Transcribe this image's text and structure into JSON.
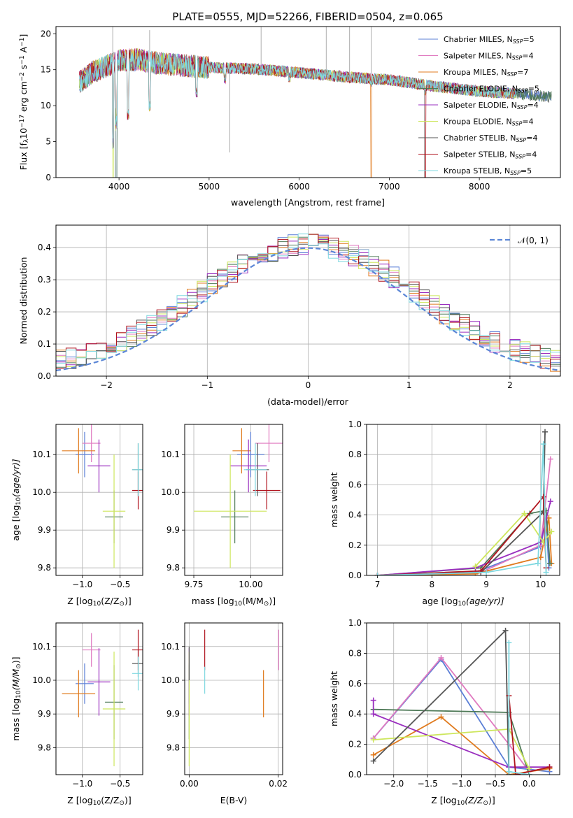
{
  "page": {
    "title": "PLATE=0555, MJD=52266, FIBERID=0504, z=0.065"
  },
  "series": [
    {
      "key": "chab_miles",
      "name": "Chabrier MILES, N",
      "n": "=5",
      "color": "#5b7fd6"
    },
    {
      "key": "salp_miles",
      "name": "Salpeter MILES, N",
      "n": "=4",
      "color": "#e07ac0"
    },
    {
      "key": "krou_miles",
      "name": "Kroupa MILES, N",
      "n": "=7",
      "color": "#e07b1f"
    },
    {
      "key": "chab_elodie",
      "name": "Chabrier ELODIE, N",
      "n": "=5",
      "color": "#4f7a58"
    },
    {
      "key": "salp_elodie",
      "name": "Salpeter ELODIE, N",
      "n": "=4",
      "color": "#9a2fbf"
    },
    {
      "key": "krou_elodie",
      "name": "Kroupa ELODIE, N",
      "n": "=4",
      "color": "#cde65c"
    },
    {
      "key": "chab_stelib",
      "name": "Chabrier STELIB, N",
      "n": "=4",
      "color": "#555555"
    },
    {
      "key": "salp_stelib",
      "name": "Salpeter STELIB, N",
      "n": "=4",
      "color": "#b0141e"
    },
    {
      "key": "krou_stelib",
      "name": "Kroupa STELIB, N",
      "n": "=5",
      "color": "#7fd8e0"
    }
  ],
  "legend_sub": "SSP",
  "normal_legend": "𝒩(0, 1)",
  "chart_data": [
    {
      "id": "spectrum",
      "type": "line",
      "xlabel": "wavelength [Angstrom, rest frame]",
      "ylabel": "Flux [f",
      "ylabel_sub": "λ",
      "ylabel_rest": "10",
      "ylabel_sup1": "−17",
      "ylabel_rest2": " erg cm",
      "ylabel_sup2": "−2",
      "ylabel_rest3": " s",
      "ylabel_sup3": "−1",
      "ylabel_rest4": " A",
      "ylabel_sup4": "−1",
      "ylabel_end": "]",
      "xlim": [
        3300,
        8900
      ],
      "ylim": [
        0,
        21
      ],
      "xticks": [
        4000,
        5000,
        6000,
        7000,
        8000
      ],
      "yticks": [
        0,
        5,
        10,
        15,
        20
      ],
      "grid": false,
      "legend": "top-right",
      "continuum": [
        [
          3560,
          13.2
        ],
        [
          3700,
          14.6
        ],
        [
          3850,
          15.4
        ],
        [
          4000,
          16.3
        ],
        [
          4200,
          16.4
        ],
        [
          4500,
          15.8
        ],
        [
          4800,
          15.5
        ],
        [
          5000,
          15.3
        ],
        [
          5500,
          15.1
        ],
        [
          6000,
          14.6
        ],
        [
          6500,
          14.0
        ],
        [
          7000,
          13.6
        ],
        [
          7500,
          12.7
        ],
        [
          8000,
          12.0
        ],
        [
          8500,
          11.6
        ],
        [
          8800,
          11.2
        ]
      ],
      "absorptions": [
        [
          3934,
          4.0
        ],
        [
          3969,
          -1
        ],
        [
          4101,
          8.0
        ],
        [
          4340,
          9.2
        ],
        [
          4861,
          11.0
        ],
        [
          5175,
          13.0
        ],
        [
          5893,
          13.2
        ],
        [
          6563,
          13.1
        ],
        [
          6800,
          12.5
        ],
        [
          7400,
          11.5
        ]
      ],
      "spikes": [
        [
          3930,
          21
        ],
        [
          4340,
          20.5
        ],
        [
          5230,
          3.5
        ],
        [
          5577,
          21
        ],
        [
          6300,
          21
        ],
        [
          6560,
          21
        ],
        [
          6800,
          21
        ],
        [
          7390,
          0
        ]
      ]
    },
    {
      "id": "residuals",
      "type": "histogram",
      "xlabel": "(data-model)/error",
      "ylabel": "Normed distribution",
      "xlim": [
        -2.5,
        2.5
      ],
      "ylim": [
        0,
        0.47
      ],
      "xticks": [
        -2,
        -1,
        0,
        1,
        2
      ],
      "yticks": [
        0.0,
        0.1,
        0.2,
        0.3,
        0.4
      ],
      "bin_width": 0.1,
      "grid": true,
      "legend": "top-right"
    },
    {
      "id": "age_vs_z",
      "type": "scatter",
      "xlabel": "Z [log",
      "xlabel_sub": "10",
      "xlabel_rest": "(Z/Z",
      "xlabel_sub2": "⊙",
      "xlabel_end": ")]",
      "ylabel": "age  [log",
      "ylabel_sub": "10",
      "ylabel_rest": "(age/yr)]",
      "xlim": [
        -1.35,
        -0.2
      ],
      "ylim": [
        9.78,
        10.18
      ],
      "xticks": [
        -1.0,
        -0.5
      ],
      "yticks": [
        9.8,
        9.9,
        10.0,
        10.1
      ],
      "points": [
        {
          "s": 0,
          "x": -0.97,
          "y": 10.1,
          "xe": 0.12,
          "ye": 0.06
        },
        {
          "s": 1,
          "x": -0.88,
          "y": 10.13,
          "xe": 0.12,
          "ye": 0.05
        },
        {
          "s": 2,
          "x": -1.05,
          "y": 10.11,
          "xe": 0.22,
          "ye": 0.06
        },
        {
          "s": 3,
          "x": -0.58,
          "y": 9.935,
          "xe": 0.12,
          "ye": 0.07
        },
        {
          "s": 4,
          "x": -0.78,
          "y": 10.07,
          "xe": 0.15,
          "ye": 0.07
        },
        {
          "s": 5,
          "x": -0.58,
          "y": 9.95,
          "xe": 0.15,
          "ye": 0.15
        },
        {
          "s": 6,
          "x": -0.26,
          "y": 10.06,
          "xe": 0.08,
          "ye": 0.07
        },
        {
          "s": 7,
          "x": -0.26,
          "y": 10.005,
          "xe": 0.08,
          "ye": 0.05
        },
        {
          "s": 8,
          "x": -0.26,
          "y": 10.06,
          "xe": 0.08,
          "ye": 0.07
        }
      ]
    },
    {
      "id": "age_vs_mass",
      "type": "scatter",
      "xlabel": "mass [log",
      "xlabel_sub": "10",
      "xlabel_rest": "(M/M",
      "xlabel_sub2": "⊙",
      "xlabel_end": ")]",
      "xlim": [
        9.71,
        10.14
      ],
      "ylim": [
        9.78,
        10.18
      ],
      "xticks": [
        9.75,
        10.0
      ],
      "yticks": [
        9.8,
        9.9,
        10.0,
        10.1
      ],
      "points": [
        {
          "s": 0,
          "x": 10.0,
          "y": 10.1,
          "xe": 0.06,
          "ye": 0.06
        },
        {
          "s": 1,
          "x": 10.08,
          "y": 10.13,
          "xe": 0.06,
          "ye": 0.05
        },
        {
          "s": 2,
          "x": 9.96,
          "y": 10.11,
          "xe": 0.04,
          "ye": 0.06
        },
        {
          "s": 3,
          "x": 9.93,
          "y": 9.935,
          "xe": 0.06,
          "ye": 0.07
        },
        {
          "s": 4,
          "x": 9.99,
          "y": 10.07,
          "xe": 0.08,
          "ye": 0.07
        },
        {
          "s": 5,
          "x": 9.91,
          "y": 9.95,
          "xe": 0.16,
          "ye": 0.15
        },
        {
          "s": 6,
          "x": 10.03,
          "y": 10.06,
          "xe": 0.05,
          "ye": 0.07
        },
        {
          "s": 7,
          "x": 10.07,
          "y": 10.005,
          "xe": 0.06,
          "ye": 0.05
        },
        {
          "s": 8,
          "x": 10.02,
          "y": 10.06,
          "xe": 0.05,
          "ye": 0.07
        }
      ]
    },
    {
      "id": "mass_vs_z",
      "type": "scatter",
      "xlabel": "Z [log",
      "xlabel_sub": "10",
      "xlabel_rest": "(Z/Z",
      "xlabel_sub2": "⊙",
      "xlabel_end": ")]",
      "ylabel": "mass [log",
      "ylabel_sub": "10",
      "ylabel_rest": "(M/M",
      "ylabel_sub2": "⊙",
      "ylabel_end": ")]",
      "xlim": [
        -1.35,
        -0.2
      ],
      "ylim": [
        9.72,
        10.17
      ],
      "xticks": [
        -1.0,
        -0.5
      ],
      "yticks": [
        9.8,
        9.9,
        10.0,
        10.1
      ],
      "points": [
        {
          "s": 0,
          "x": -0.97,
          "y": 9.99,
          "xe": 0.12,
          "ye": 0.06
        },
        {
          "s": 1,
          "x": -0.88,
          "y": 10.09,
          "xe": 0.12,
          "ye": 0.05
        },
        {
          "s": 2,
          "x": -1.05,
          "y": 9.96,
          "xe": 0.22,
          "ye": 0.07
        },
        {
          "s": 3,
          "x": -0.58,
          "y": 9.935,
          "xe": 0.12,
          "ye": 0.11
        },
        {
          "s": 4,
          "x": -0.78,
          "y": 9.995,
          "xe": 0.15,
          "ye": 0.1
        },
        {
          "s": 5,
          "x": -0.58,
          "y": 9.915,
          "xe": 0.15,
          "ye": 0.17
        },
        {
          "s": 6,
          "x": -0.26,
          "y": 10.05,
          "xe": 0.08,
          "ye": 0.04
        },
        {
          "s": 7,
          "x": -0.26,
          "y": 10.09,
          "xe": 0.08,
          "ye": 0.06
        },
        {
          "s": 8,
          "x": -0.26,
          "y": 10.02,
          "xe": 0.08,
          "ye": 0.05
        }
      ]
    },
    {
      "id": "mass_vs_ebv",
      "type": "scatter",
      "xlabel": "E(B-V)",
      "xlim": [
        -0.001,
        0.021
      ],
      "ylim": [
        9.72,
        10.17
      ],
      "xticks": [
        0.0,
        0.02
      ],
      "yticks": [
        9.8,
        9.9,
        10.0,
        10.1
      ],
      "points": [
        {
          "s": 0,
          "x": 0.0,
          "y": 9.99,
          "xe": 0,
          "ye": 0.06
        },
        {
          "s": 1,
          "x": 0.0201,
          "y": 10.09,
          "xe": 0,
          "ye": 0.06
        },
        {
          "s": 2,
          "x": 0.0167,
          "y": 9.96,
          "xe": 0,
          "ye": 0.07
        },
        {
          "s": 3,
          "x": 0.0,
          "y": 9.935,
          "xe": 0,
          "ye": 0.11
        },
        {
          "s": 4,
          "x": 0.0,
          "y": 9.995,
          "xe": 0,
          "ye": 0.1
        },
        {
          "s": 5,
          "x": 0.0,
          "y": 9.915,
          "xe": 0,
          "ye": 0.17
        },
        {
          "s": 6,
          "x": 0.0,
          "y": 10.05,
          "xe": 0,
          "ye": 0.05
        },
        {
          "s": 7,
          "x": 0.0035,
          "y": 10.09,
          "xe": 0,
          "ye": 0.06
        },
        {
          "s": 8,
          "x": 0.0035,
          "y": 10.0,
          "xe": 0,
          "ye": 0.04
        }
      ]
    },
    {
      "id": "weight_vs_age",
      "type": "line",
      "xlabel": "age  [log",
      "xlabel_sub": "10",
      "xlabel_rest": "(age/yr)]",
      "ylabel": "mass weight",
      "xlim": [
        6.8,
        10.35
      ],
      "ylim": [
        0,
        1
      ],
      "xticks": [
        7,
        8,
        9,
        10
      ],
      "yticks": [
        0.0,
        0.2,
        0.4,
        0.6,
        0.8,
        1.0
      ],
      "grid": true,
      "lines": [
        {
          "s": 0,
          "pts": [
            [
              7.0,
              0.0
            ],
            [
              8.8,
              0.02
            ],
            [
              10.0,
              0.19
            ],
            [
              10.1,
              0.38
            ],
            [
              10.15,
              0.05
            ]
          ]
        },
        {
          "s": 1,
          "pts": [
            [
              7.0,
              0.0
            ],
            [
              8.9,
              0.02
            ],
            [
              10.0,
              0.2
            ],
            [
              10.18,
              0.77
            ]
          ]
        },
        {
          "s": 2,
          "pts": [
            [
              7.0,
              0.0
            ],
            [
              8.8,
              0.01
            ],
            [
              10.0,
              0.12
            ],
            [
              10.15,
              0.38
            ],
            [
              10.2,
              0.08
            ]
          ]
        },
        {
          "s": 3,
          "pts": [
            [
              7.0,
              0.0
            ],
            [
              8.9,
              0.05
            ],
            [
              9.8,
              0.41
            ],
            [
              10.1,
              0.43
            ],
            [
              10.17,
              0.08
            ]
          ]
        },
        {
          "s": 4,
          "pts": [
            [
              7.0,
              0.0
            ],
            [
              8.8,
              0.05
            ],
            [
              10.0,
              0.22
            ],
            [
              10.18,
              0.49
            ]
          ]
        },
        {
          "s": 5,
          "pts": [
            [
              8.8,
              0.06
            ],
            [
              9.7,
              0.41
            ],
            [
              10.05,
              0.22
            ],
            [
              10.2,
              0.29
            ]
          ]
        },
        {
          "s": 6,
          "pts": [
            [
              7.0,
              0.0
            ],
            [
              8.9,
              0.02
            ],
            [
              10.05,
              0.42
            ],
            [
              10.08,
              0.95
            ]
          ]
        },
        {
          "s": 7,
          "pts": [
            [
              7.0,
              0.0
            ],
            [
              8.9,
              0.03
            ],
            [
              10.05,
              0.52
            ],
            [
              10.1,
              0.05
            ]
          ]
        },
        {
          "s": 8,
          "pts": [
            [
              7.0,
              0.0
            ],
            [
              9.0,
              0.02
            ],
            [
              9.95,
              0.08
            ],
            [
              10.05,
              0.87
            ],
            [
              10.1,
              0.02
            ]
          ]
        }
      ]
    },
    {
      "id": "weight_vs_z",
      "type": "line",
      "xlabel": "Z [log",
      "xlabel_sub": "10",
      "xlabel_rest": "(Z/Z",
      "xlabel_sub2": "⊙",
      "xlabel_end": ")]",
      "ylabel": "mass weight",
      "xlim": [
        -2.4,
        0.45
      ],
      "ylim": [
        0,
        1
      ],
      "xticks": [
        -2.0,
        -1.5,
        -1.0,
        -0.5,
        0.0
      ],
      "yticks": [
        0.0,
        0.2,
        0.4,
        0.6,
        0.8,
        1.0
      ],
      "grid": true,
      "lines": [
        {
          "s": 0,
          "pts": [
            [
              -2.3,
              0.24
            ],
            [
              -1.3,
              0.76
            ],
            [
              -0.3,
              0.05
            ],
            [
              0.3,
              0.02
            ]
          ]
        },
        {
          "s": 1,
          "pts": [
            [
              -2.3,
              0.24
            ],
            [
              -1.3,
              0.77
            ],
            [
              -0.3,
              0.2
            ],
            [
              0.0,
              0.02
            ]
          ]
        },
        {
          "s": 2,
          "pts": [
            [
              -2.3,
              0.13
            ],
            [
              -1.3,
              0.38
            ],
            [
              -0.3,
              0.0
            ],
            [
              0.3,
              0.04
            ]
          ]
        },
        {
          "s": 3,
          "pts": [
            [
              -2.3,
              0.43
            ],
            [
              -0.3,
              0.41
            ],
            [
              0.0,
              0.0
            ]
          ]
        },
        {
          "s": 4,
          "pts": [
            [
              -2.3,
              0.49
            ],
            [
              -2.3,
              0.4
            ],
            [
              -0.3,
              0.05
            ],
            [
              0.3,
              0.05
            ]
          ]
        },
        {
          "s": 5,
          "pts": [
            [
              -2.3,
              0.23
            ],
            [
              -0.3,
              0.3
            ],
            [
              0.0,
              0.04
            ]
          ]
        },
        {
          "s": 6,
          "pts": [
            [
              -2.3,
              0.09
            ],
            [
              -0.35,
              0.95
            ],
            [
              -0.3,
              0.0
            ]
          ]
        },
        {
          "s": 7,
          "pts": [
            [
              -0.3,
              0.52
            ],
            [
              -0.2,
              0.0
            ],
            [
              0.3,
              0.05
            ]
          ]
        },
        {
          "s": 8,
          "pts": [
            [
              -0.3,
              0.87
            ],
            [
              -0.3,
              0.02
            ],
            [
              0.0,
              0.0
            ]
          ]
        }
      ]
    }
  ]
}
